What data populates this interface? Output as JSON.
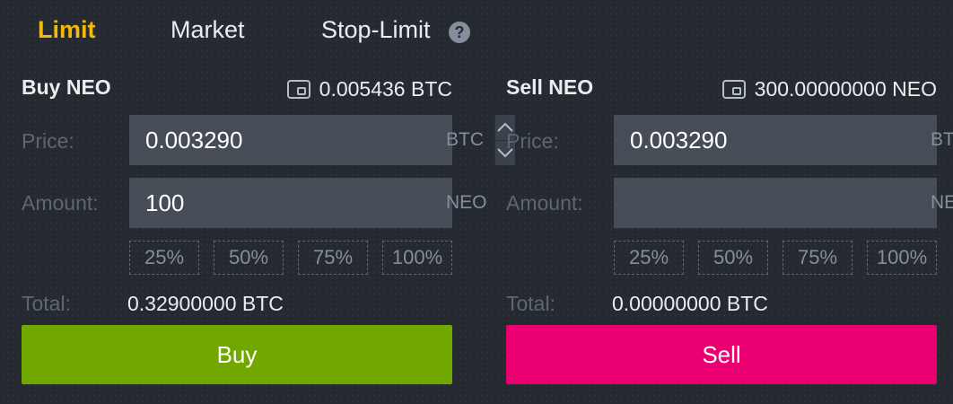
{
  "tabs": [
    {
      "label": "Limit",
      "active": true
    },
    {
      "label": "Market",
      "active": false
    },
    {
      "label": "Stop-Limit",
      "active": false
    }
  ],
  "help_icon": "?",
  "colors": {
    "active_tab": "#f0b90b",
    "buy_button": "#70a800",
    "sell_button": "#ea0070",
    "background": "#252930",
    "input_bg": "#474d57"
  },
  "buy": {
    "title": "Buy NEO",
    "balance": "0.005436 BTC",
    "price_label": "Price:",
    "price_value": "0.003290",
    "price_unit": "BTC",
    "amount_label": "Amount:",
    "amount_value": "100",
    "amount_unit": "NEO",
    "percents": [
      "25%",
      "50%",
      "75%",
      "100%"
    ],
    "total_label": "Total:",
    "total_value": "0.32900000 BTC",
    "button_label": "Buy"
  },
  "sell": {
    "title": "Sell NEO",
    "balance": "300.00000000 NEO",
    "price_label": "Price:",
    "price_value": "0.003290",
    "price_unit": "BTC",
    "amount_label": "Amount:",
    "amount_value": "",
    "amount_unit": "NEO",
    "percents": [
      "25%",
      "50%",
      "75%",
      "100%"
    ],
    "total_label": "Total:",
    "total_value": "0.00000000 BTC",
    "button_label": "Sell"
  },
  "icons": {
    "wallet": "wallet-icon",
    "help": "help-icon",
    "stepper_up": "chevron-up-icon",
    "stepper_down": "chevron-down-icon"
  }
}
